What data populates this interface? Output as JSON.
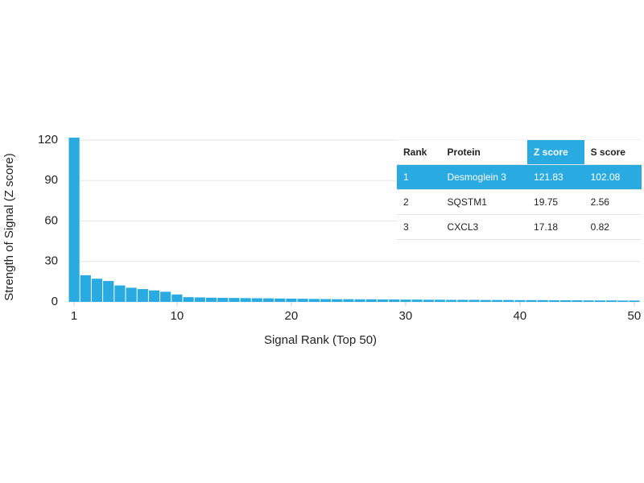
{
  "chart_data": {
    "type": "bar",
    "x_label": "Signal Rank (Top 50)",
    "y_label": "Strength of Signal (Z score)",
    "x": [
      1,
      2,
      3,
      4,
      5,
      6,
      7,
      8,
      9,
      10,
      11,
      12,
      13,
      14,
      15,
      16,
      17,
      18,
      19,
      20,
      21,
      22,
      23,
      24,
      25,
      26,
      27,
      28,
      29,
      30,
      31,
      32,
      33,
      34,
      35,
      36,
      37,
      38,
      39,
      40,
      41,
      42,
      43,
      44,
      45,
      46,
      47,
      48,
      49,
      50
    ],
    "values": [
      121.83,
      19.75,
      17.18,
      15.5,
      12.2,
      10.5,
      9.5,
      8.5,
      7.5,
      5.5,
      3.5,
      3.3,
      3.1,
      3.0,
      2.9,
      2.8,
      2.7,
      2.6,
      2.5,
      2.4,
      2.3,
      2.2,
      2.1,
      2.0,
      2.0,
      1.9,
      1.9,
      1.8,
      1.8,
      1.7,
      1.7,
      1.6,
      1.6,
      1.5,
      1.5,
      1.5,
      1.4,
      1.4,
      1.4,
      1.3,
      1.3,
      1.3,
      1.2,
      1.2,
      1.2,
      1.1,
      1.1,
      1.1,
      1.0,
      1.0
    ],
    "color": "#29abe2",
    "xlim": [
      0.5,
      50.5
    ],
    "xticks": [
      1,
      10,
      20,
      30,
      40,
      50
    ],
    "ylim": [
      0,
      120
    ],
    "yticks": [
      0,
      30,
      60,
      90,
      120
    ],
    "grid": true
  },
  "table": {
    "header": [
      "Rank",
      "Protein",
      "Z score",
      "S score"
    ],
    "rows": [
      [
        "1",
        "Desmoglein 3",
        "121.83",
        "102.08"
      ],
      [
        "2",
        "SQSTM1",
        "19.75",
        "2.56"
      ],
      [
        "3",
        "CXCL3",
        "17.18",
        "0.82"
      ]
    ],
    "highlight_color": "#29abe2"
  }
}
